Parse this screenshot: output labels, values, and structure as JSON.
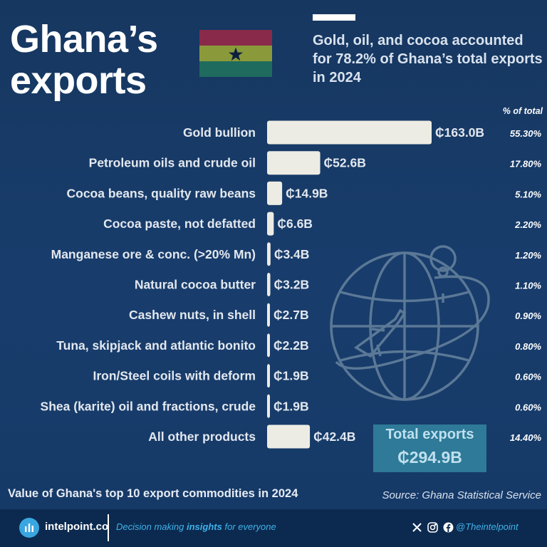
{
  "header": {
    "title_line1": "Ghana’s",
    "title_line2": "exports",
    "subtitle": "Gold, oil, and cocoa accounted for 78.2% of Ghana’s total exports in 2024",
    "pct_header": "% of total"
  },
  "flag": {
    "colors": [
      "#8a2a4a",
      "#8a9a3a",
      "#1f6b5e"
    ],
    "star_color": "#0d2040"
  },
  "chart_data": {
    "type": "bar",
    "orientation": "horizontal",
    "categories": [
      "Gold bullion",
      "Petroleum oils and crude oil",
      "Cocoa beans, quality raw beans",
      "Cocoa paste, not defatted",
      "Manganese ore & conc. (>20% Mn)",
      "Natural cocoa butter",
      "Cashew nuts, in shell",
      "Tuna, skipjack and atlantic bonito",
      "Iron/Steel coils with deform",
      "Shea (karite) oil and fractions, crude",
      "All other products"
    ],
    "values": [
      163.0,
      52.6,
      14.9,
      6.6,
      3.4,
      3.2,
      2.7,
      2.2,
      1.9,
      1.9,
      42.4
    ],
    "value_labels": [
      "₵163.0B",
      "₵52.6B",
      "₵14.9B",
      "₵6.6B",
      "₵3.4B",
      "₵3.2B",
      "₵2.7B",
      "₵2.2B",
      "₵1.9B",
      "₵1.9B",
      "₵42.4B"
    ],
    "pct_labels": [
      "55.30%",
      "17.80%",
      "5.10%",
      "2.20%",
      "1.20%",
      "1.10%",
      "0.90%",
      "0.80%",
      "0.60%",
      "0.60%",
      "14.40%"
    ],
    "bar_color": "#edece4"
  },
  "total": {
    "label": "Total exports",
    "value": "₵294.9B"
  },
  "caption": "Value of Ghana's top 10 export commodities in 2024",
  "source": "Source: Ghana Statistical Service",
  "footer": {
    "brand": "intelpoint.co",
    "tagline_pre": "Decision making ",
    "tagline_em": "insights",
    "tagline_post": " for everyone",
    "handle": "@Theintelpoint"
  }
}
